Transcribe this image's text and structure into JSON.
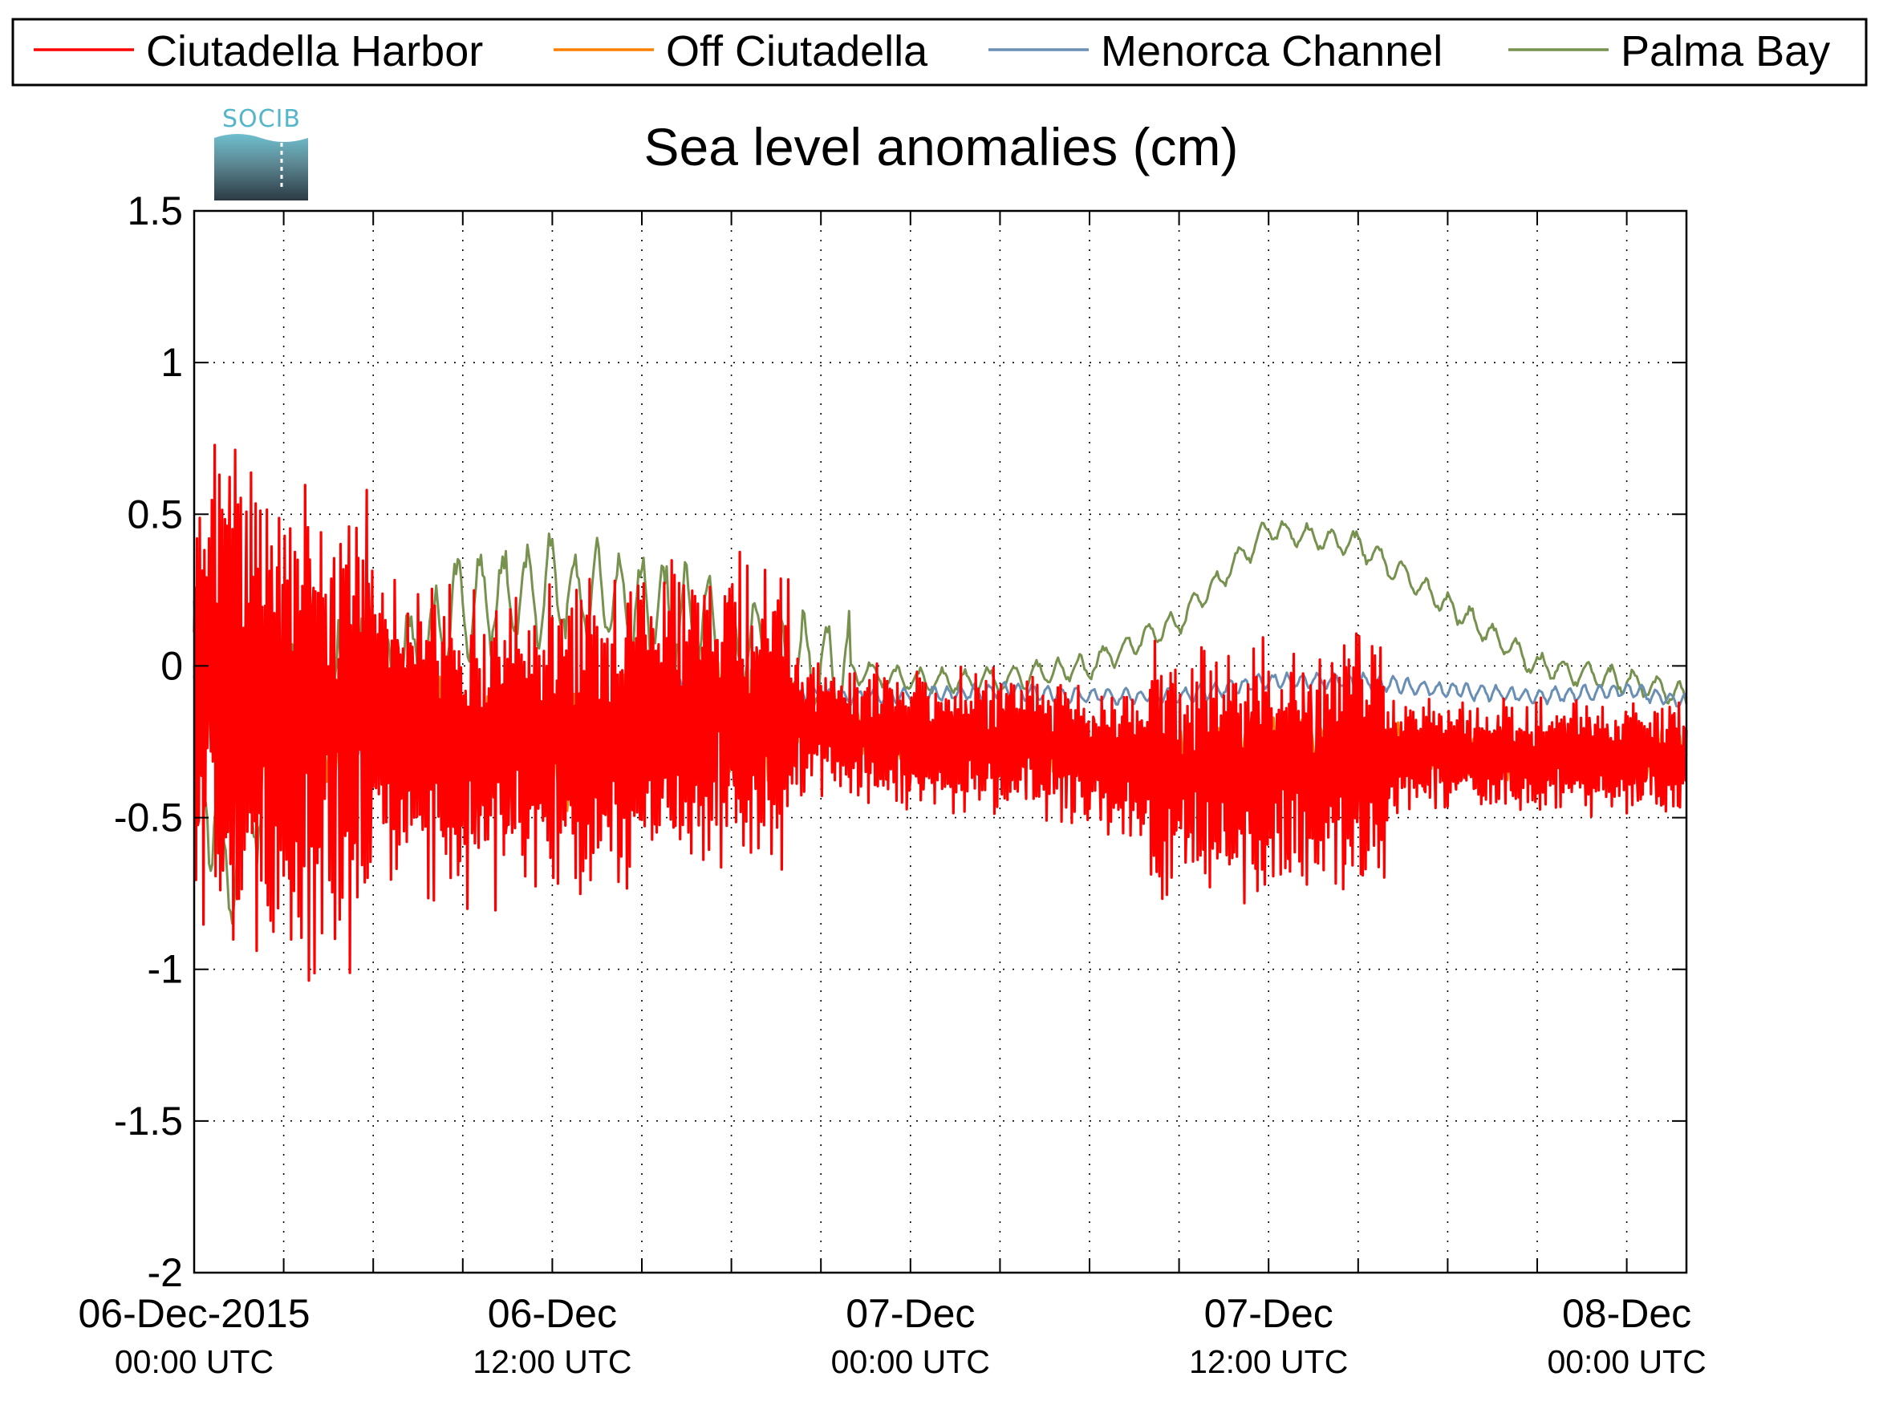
{
  "chart_data": {
    "type": "line",
    "title": "Sea level anomalies (cm)",
    "xlabel": "",
    "ylabel": "",
    "ylim": [
      -2,
      1.5
    ],
    "yticks": [
      1.5,
      1,
      0.5,
      0,
      -0.5,
      -1,
      -1.5,
      -2
    ],
    "ytick_labels": [
      "1.5",
      "1",
      "0.5",
      "0",
      "-0.5",
      "-1",
      "-1.5",
      "-2"
    ],
    "xlim": [
      "2015-12-06 00:00",
      "2015-12-08 02:00"
    ],
    "xtick_labels": [
      {
        "date": "06-Dec-2015",
        "time": "00:00 UTC",
        "x": "2015-12-06 00:00"
      },
      {
        "date": "06-Dec",
        "time": "12:00 UTC",
        "x": "2015-12-06 12:00"
      },
      {
        "date": "07-Dec",
        "time": "00:00 UTC",
        "x": "2015-12-07 00:00"
      },
      {
        "date": "07-Dec",
        "time": "12:00 UTC",
        "x": "2015-12-07 12:00"
      },
      {
        "date": "08-Dec",
        "time": "00:00 UTC",
        "x": "2015-12-08 00:00"
      }
    ],
    "grid": true,
    "legend_position": "top",
    "logo_text": "SOCIB",
    "series": [
      {
        "name": "Ciutadella Harbor",
        "color": "#ff0000",
        "x": [
          "2015-12-06 00:00",
          "2015-12-06 03:00",
          "2015-12-06 06:00",
          "2015-12-06 09:00",
          "2015-12-06 12:00",
          "2015-12-06 15:00",
          "2015-12-06 18:00",
          "2015-12-06 21:00",
          "2015-12-07 00:00",
          "2015-12-07 03:00",
          "2015-12-07 06:00",
          "2015-12-07 09:00",
          "2015-12-07 12:00",
          "2015-12-07 15:00",
          "2015-12-07 18:00",
          "2015-12-07 21:00",
          "2015-12-08 00:00",
          "2015-12-08 02:00"
        ],
        "values": [
          -0.05,
          -0.2,
          -0.15,
          -0.3,
          -0.25,
          -0.2,
          -0.15,
          -0.2,
          -0.25,
          -0.25,
          -0.3,
          -0.35,
          -0.35,
          -0.3,
          -0.3,
          -0.3,
          -0.3,
          -0.3
        ]
      },
      {
        "name": "Off Ciutadella",
        "color": "#ff8000",
        "x": [
          "2015-12-06 00:00",
          "2015-12-06 03:00",
          "2015-12-06 06:00",
          "2015-12-06 09:00",
          "2015-12-06 12:00",
          "2015-12-06 15:00",
          "2015-12-06 18:00",
          "2015-12-06 21:00",
          "2015-12-07 00:00",
          "2015-12-07 03:00",
          "2015-12-07 06:00",
          "2015-12-07 09:00",
          "2015-12-07 12:00",
          "2015-12-07 15:00",
          "2015-12-07 18:00",
          "2015-12-07 21:00",
          "2015-12-08 00:00",
          "2015-12-08 02:00"
        ],
        "values": [
          -0.1,
          -0.2,
          -0.2,
          -0.25,
          -0.3,
          -0.2,
          -0.15,
          -0.2,
          -0.25,
          -0.25,
          -0.3,
          -0.3,
          -0.25,
          -0.25,
          -0.3,
          -0.3,
          -0.3,
          -0.3
        ]
      },
      {
        "name": "Menorca Channel",
        "color": "#6a8fb5",
        "x": [
          "2015-12-06 00:00",
          "2015-12-06 03:00",
          "2015-12-06 06:00",
          "2015-12-06 09:00",
          "2015-12-06 12:00",
          "2015-12-06 15:00",
          "2015-12-06 18:00",
          "2015-12-06 21:00",
          "2015-12-07 00:00",
          "2015-12-07 03:00",
          "2015-12-07 06:00",
          "2015-12-07 09:00",
          "2015-12-07 12:00",
          "2015-12-07 15:00",
          "2015-12-07 18:00",
          "2015-12-07 21:00",
          "2015-12-08 00:00",
          "2015-12-08 02:00"
        ],
        "values": [
          0.0,
          -0.15,
          -0.2,
          -0.3,
          -0.2,
          -0.15,
          -0.1,
          -0.1,
          -0.1,
          -0.08,
          -0.1,
          -0.1,
          -0.05,
          -0.05,
          -0.08,
          -0.1,
          -0.08,
          -0.12
        ]
      },
      {
        "name": "Palma Bay",
        "color": "#77914f",
        "x": [
          "2015-12-06 00:00",
          "2015-12-06 01:00",
          "2015-12-06 03:00",
          "2015-12-06 06:00",
          "2015-12-06 09:00",
          "2015-12-06 12:00",
          "2015-12-06 15:00",
          "2015-12-06 18:00",
          "2015-12-06 21:00",
          "2015-12-07 00:00",
          "2015-12-07 03:00",
          "2015-12-07 06:00",
          "2015-12-07 09:00",
          "2015-12-07 12:00",
          "2015-12-07 15:00",
          "2015-12-07 18:00",
          "2015-12-07 21:00",
          "2015-12-08 00:00",
          "2015-12-08 02:00"
        ],
        "values": [
          -0.05,
          -0.7,
          -0.1,
          -0.1,
          0.2,
          0.25,
          0.2,
          0.1,
          0.0,
          -0.05,
          -0.05,
          0.0,
          0.15,
          0.45,
          0.4,
          0.2,
          0.0,
          -0.05,
          -0.1
        ]
      }
    ]
  }
}
